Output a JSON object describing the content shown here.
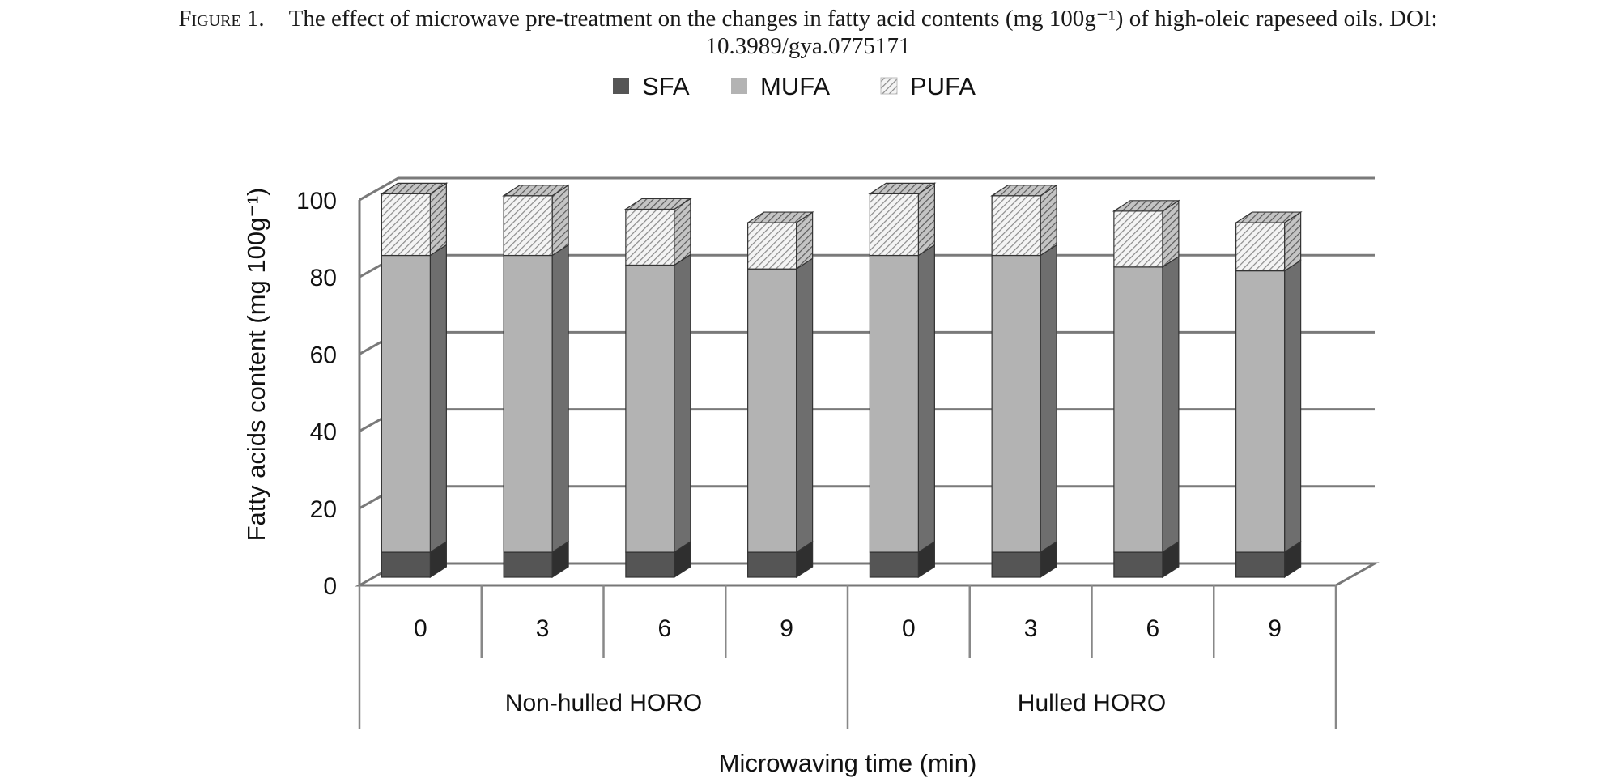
{
  "caption": {
    "label": "Figure 1.",
    "text_line1": "The effect of microwave pre-treatment on the changes in fatty acid contents (mg 100g⁻¹) of high-oleic rapeseed oils. DOI:",
    "text_line2": "10.3989/gya.0775171"
  },
  "chart_data": {
    "type": "bar",
    "stacked": true,
    "style": "3d",
    "categories": [
      "0",
      "3",
      "6",
      "9",
      "0",
      "3",
      "6",
      "9"
    ],
    "groups": [
      {
        "label": "Non-hulled HORO",
        "categories": [
          "0",
          "3",
          "6",
          "9"
        ]
      },
      {
        "label": "Hulled HORO",
        "categories": [
          "0",
          "3",
          "6",
          "9"
        ]
      }
    ],
    "series": [
      {
        "name": "SFA",
        "color": "#555555",
        "values": [
          6.5,
          6.5,
          6.5,
          6.5,
          6.5,
          6.5,
          6.5,
          6.5
        ]
      },
      {
        "name": "MUFA",
        "color": "#b3b3b3",
        "values": [
          77,
          77,
          74.5,
          73.5,
          77,
          77,
          74,
          73
        ]
      },
      {
        "name": "PUFA",
        "color": "#dcdcdc",
        "pattern": "hatched",
        "values": [
          16,
          15.5,
          14.5,
          12,
          16,
          15.5,
          14.5,
          12.5
        ]
      }
    ],
    "ylabel": "Fatty acids content (mg 100g⁻¹)",
    "xlabel": "Microwaving time (min)",
    "ylim": [
      0,
      100
    ],
    "yticks": [
      0,
      20,
      40,
      60,
      80,
      100
    ],
    "grid": true,
    "legend_position": "top"
  }
}
